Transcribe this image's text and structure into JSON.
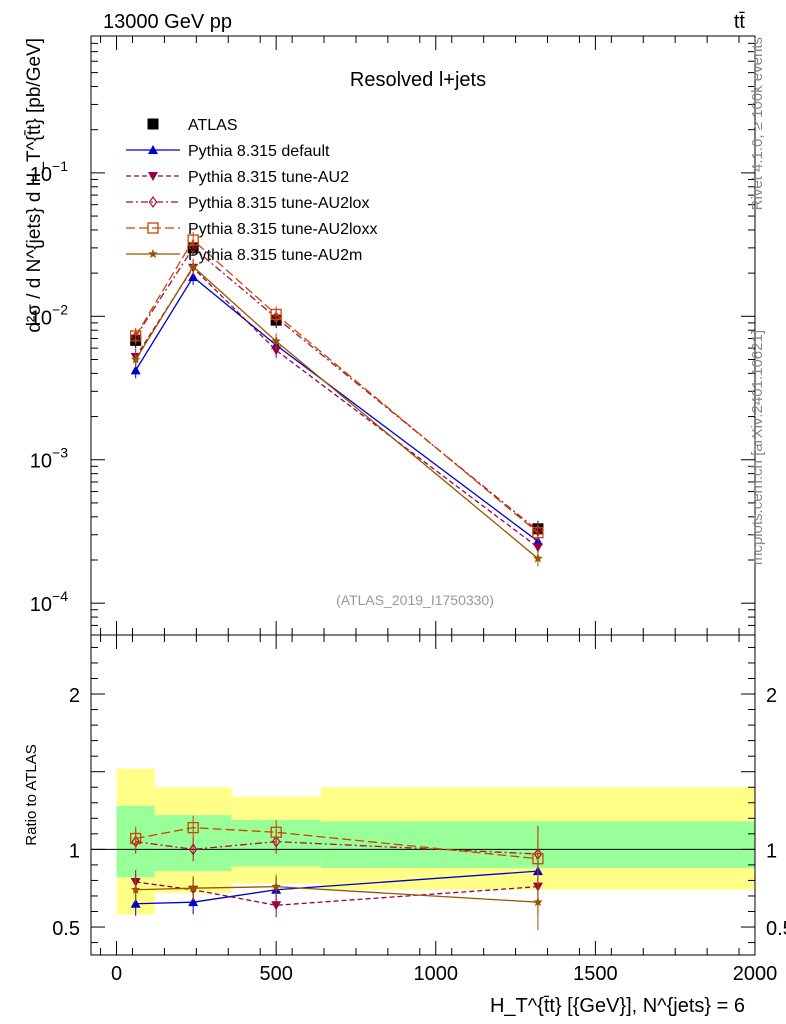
{
  "header": {
    "energy_label": "13000 GeV pp",
    "process_label": "tt̄"
  },
  "side_labels": {
    "rivet": "Rivet 4.1.0, ≥ 100k events",
    "source": "mcplots.cern.ch [arXiv:2401.10621]"
  },
  "chart_data": [
    {
      "type": "line",
      "panel": "main",
      "title": "Resolved l+jets",
      "analysis_id": "(ATLAS_2019_I1750330)",
      "ylabel": "d²σ / d N^{jets} d H_T^{t̄t} [pb/GeV]",
      "yscale": "log",
      "ylim": [
        6e-05,
        0.9
      ],
      "xlim": [
        -80,
        2000
      ],
      "y_ticks": [
        {
          "value": 0.1,
          "base": "10",
          "exp": "−1"
        },
        {
          "value": 0.01,
          "base": "10",
          "exp": "−2"
        },
        {
          "value": 0.001,
          "base": "10",
          "exp": "−3"
        },
        {
          "value": 0.0001,
          "base": "10",
          "exp": "−4"
        }
      ],
      "x": [
        60,
        240,
        500,
        1320
      ],
      "series": [
        {
          "name": "ATLAS",
          "color": "#000000",
          "marker": "square-filled",
          "line": "none",
          "values": [
            0.0068,
            0.03,
            0.0094,
            0.00033
          ]
        },
        {
          "name": "Pythia 8.315 default",
          "color": "#0000cc",
          "marker": "triangle-up-filled",
          "line": "solid",
          "values": [
            0.0042,
            0.0188,
            0.0063,
            0.00027
          ]
        },
        {
          "name": "Pythia 8.315 tune-AU2",
          "color": "#990044",
          "marker": "triangle-down-filled",
          "line": "dashed",
          "values": [
            0.0052,
            0.0218,
            0.0058,
            0.000245
          ]
        },
        {
          "name": "Pythia 8.315 tune-AU2lox",
          "color": "#aa1133",
          "marker": "diamond-open",
          "line": "dashdot",
          "values": [
            0.0072,
            0.03,
            0.0098,
            0.00032
          ]
        },
        {
          "name": "Pythia 8.315 tune-AU2loxx",
          "color": "#cc4400",
          "marker": "square-open",
          "line": "dashed-long",
          "values": [
            0.0073,
            0.034,
            0.0103,
            0.00031
          ]
        },
        {
          "name": "Pythia 8.315 tune-AU2m",
          "color": "#995500",
          "marker": "star",
          "line": "solid",
          "values": [
            0.005,
            0.0222,
            0.0067,
            0.000205
          ]
        }
      ]
    },
    {
      "type": "line",
      "panel": "ratio",
      "ylabel": "Ratio to ATLAS",
      "ylim": [
        0.32,
        2.38
      ],
      "xlim": [
        -80,
        2000
      ],
      "y_ticks": [
        0.5,
        1,
        2
      ],
      "x_ticks": [
        0,
        500,
        1000,
        1500,
        2000
      ],
      "xlabel": "H_T^{t̄t} [{GeV}], N^{jets} = 6",
      "uncertainty_bands": [
        {
          "x_range": [
            0,
            120
          ],
          "inner": [
            0.82,
            1.28
          ],
          "outer": [
            0.58,
            1.52
          ]
        },
        {
          "x_range": [
            120,
            360
          ],
          "inner": [
            0.86,
            1.22
          ],
          "outer": [
            0.72,
            1.4
          ]
        },
        {
          "x_range": [
            360,
            640
          ],
          "inner": [
            0.89,
            1.19
          ],
          "outer": [
            0.78,
            1.34
          ]
        },
        {
          "x_range": [
            640,
            2000
          ],
          "inner": [
            0.88,
            1.18
          ],
          "outer": [
            0.74,
            1.4
          ]
        }
      ],
      "x": [
        60,
        240,
        500,
        1320
      ],
      "series": [
        {
          "name": "Pythia 8.315 default",
          "values": [
            0.65,
            0.66,
            0.74,
            0.86
          ]
        },
        {
          "name": "Pythia 8.315 tune-AU2",
          "values": [
            0.79,
            0.74,
            0.64,
            0.76
          ]
        },
        {
          "name": "Pythia 8.315 tune-AU2lox",
          "values": [
            1.05,
            1.0,
            1.05,
            0.97
          ]
        },
        {
          "name": "Pythia 8.315 tune-AU2loxx",
          "values": [
            1.07,
            1.14,
            1.11,
            0.94
          ]
        },
        {
          "name": "Pythia 8.315 tune-AU2m",
          "values": [
            0.74,
            0.75,
            0.76,
            0.66
          ]
        }
      ]
    }
  ]
}
